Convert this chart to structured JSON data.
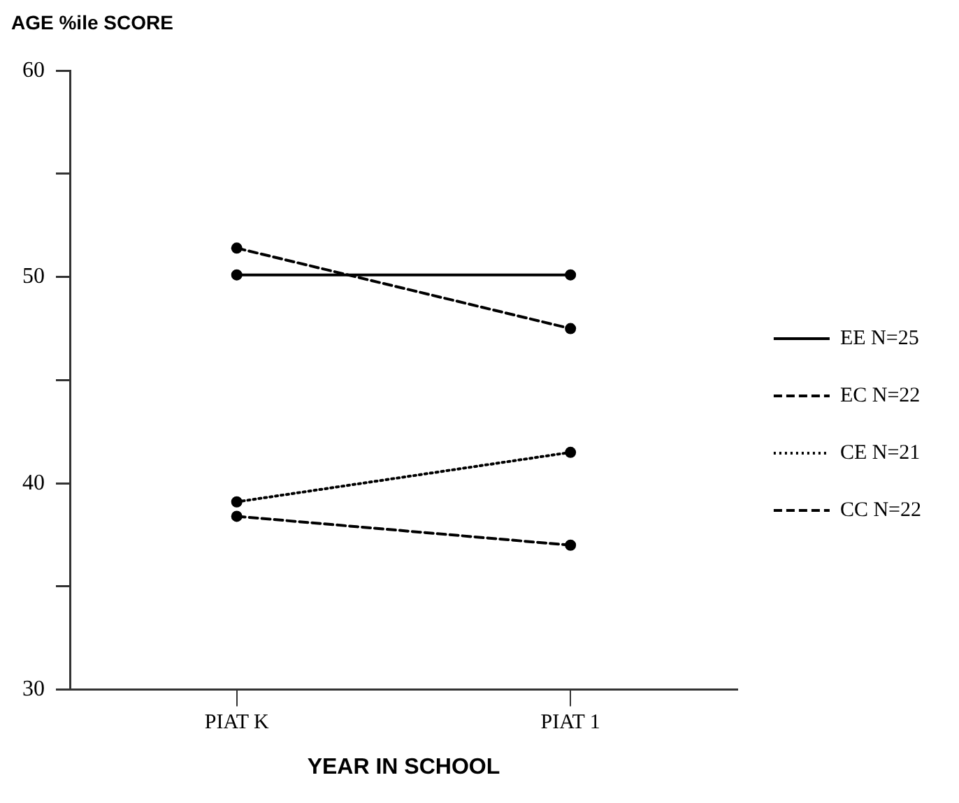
{
  "chart_data": {
    "type": "line",
    "ylabel": "AGE %ile SCORE",
    "xlabel": "YEAR IN SCHOOL",
    "categories": [
      "PIAT K",
      "PIAT 1"
    ],
    "series": [
      {
        "name": "EE N=25",
        "color": "#000000",
        "line_style": "solid",
        "values": [
          50.1,
          50.1
        ]
      },
      {
        "name": "EC N=22",
        "color": "#000000",
        "line_style": "dashed",
        "values": [
          51.4,
          47.5
        ]
      },
      {
        "name": "CE N=21",
        "color": "#000000",
        "line_style": "dotted",
        "values": [
          39.1,
          41.5
        ]
      },
      {
        "name": "CC N=22",
        "color": "#000000",
        "line_style": "dashed",
        "values": [
          38.4,
          37.0
        ]
      }
    ],
    "ylim": [
      30,
      60
    ],
    "yticks": [
      30,
      {
        "value": 35,
        "label": null
      },
      40,
      {
        "value": 45,
        "label": null
      },
      50,
      {
        "value": 55,
        "label": null
      },
      60
    ],
    "marker": "circle",
    "grid": false,
    "legend": "right"
  }
}
